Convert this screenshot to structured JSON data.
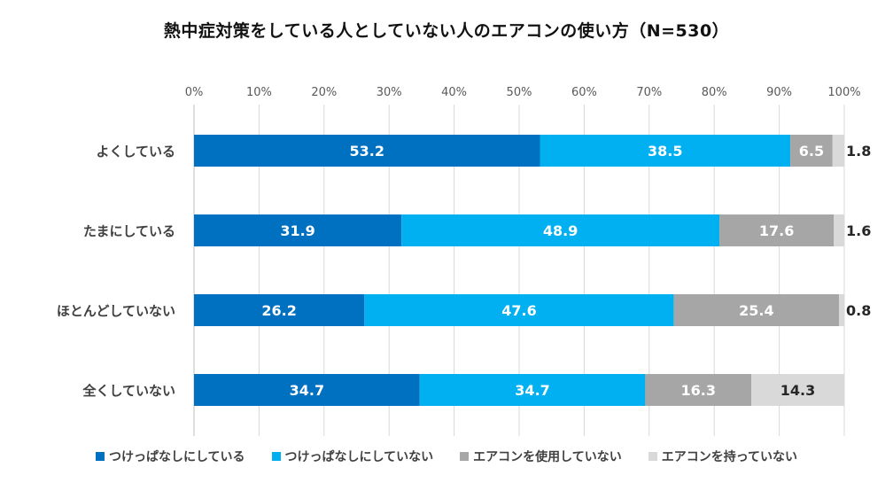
{
  "chart_data": {
    "type": "bar",
    "orientation": "horizontal",
    "stacked": "percent",
    "title": "熱中症対策をしている人としていない人のエアコンの使い方（N=530）",
    "xlabel": "",
    "ylabel": "",
    "xlim": [
      0,
      100
    ],
    "x_ticks": [
      "0%",
      "10%",
      "20%",
      "30%",
      "40%",
      "50%",
      "60%",
      "70%",
      "80%",
      "90%",
      "100%"
    ],
    "grid": true,
    "legend_position": "bottom",
    "categories": [
      "よくしている",
      "たまにしている",
      "ほとんどしていない",
      "全くしていない"
    ],
    "series": [
      {
        "name": "つけっぱなしにしている",
        "color": "#0070C0",
        "label_color": "#ffffff",
        "values": [
          53.2,
          31.9,
          26.2,
          34.7
        ]
      },
      {
        "name": "つけっぱなしにしていない",
        "color": "#00B0F0",
        "label_color": "#ffffff",
        "values": [
          38.5,
          48.9,
          47.6,
          34.7
        ]
      },
      {
        "name": "エアコンを使用していない",
        "color": "#A6A6A6",
        "label_color": "#ffffff",
        "values": [
          6.5,
          17.6,
          25.4,
          16.3
        ]
      },
      {
        "name": "エアコンを持っていない",
        "color": "#D9D9D9",
        "label_color": "#262626",
        "values": [
          1.8,
          1.6,
          0.8,
          14.3
        ]
      }
    ],
    "data_labels": [
      [
        "53.2",
        "38.5",
        "6.5",
        "1.8"
      ],
      [
        "31.9",
        "48.9",
        "17.6",
        "1.6"
      ],
      [
        "26.2",
        "47.6",
        "25.4",
        "0.8"
      ],
      [
        "34.7",
        "34.7",
        "16.3",
        "14.3"
      ]
    ]
  }
}
